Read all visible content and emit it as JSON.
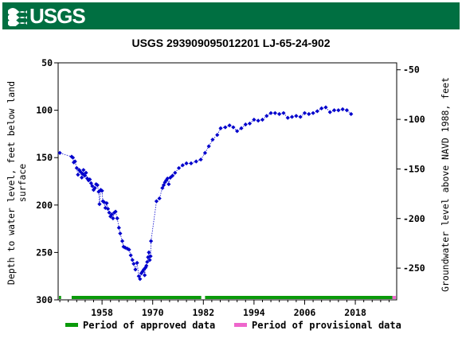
{
  "banner": {
    "logo_text": "USGS"
  },
  "colors": {
    "banner": "#006f41",
    "points": "#0000cc",
    "approved": "#0a9a0a",
    "provisional": "#ee66cc"
  },
  "chart_data": {
    "type": "scatter",
    "title": "USGS 293909095012201 LJ-65-24-902",
    "ylabel_left": [
      "Depth to water level, feet below land",
      "surface"
    ],
    "ylabel_right": "Groundwater level above NAVD 1988, feet",
    "xlabel": "",
    "xlim": [
      1947.6,
      2027.8
    ],
    "ylim_left": [
      300,
      50
    ],
    "ylim_right": [
      -282,
      -43
    ],
    "reversed_left_axis": true,
    "x_ticks": [
      1958,
      1970,
      1982,
      1994,
      2006,
      2018
    ],
    "y_ticks_left": [
      50,
      100,
      150,
      200,
      250,
      300
    ],
    "y_ticks_right": [
      -50,
      -100,
      -150,
      -200,
      -250
    ],
    "grid": false,
    "legend_position": "bottom",
    "legend": [
      {
        "label": "Period of approved data",
        "color": "#0a9a0a"
      },
      {
        "label": "Period of provisional data",
        "color": "#ee66cc"
      }
    ],
    "approved_periods": [
      [
        1947.8,
        1948.3
      ],
      [
        1950.8,
        1981.5
      ],
      [
        1982.4,
        2026.8
      ]
    ],
    "provisional_periods": [
      [
        2026.8,
        2027.6
      ]
    ],
    "series": [
      {
        "values": [
          [
            1948.0,
            145
          ],
          [
            1950.8,
            149
          ],
          [
            1951.1,
            150
          ],
          [
            1951.3,
            155
          ],
          [
            1951.6,
            154
          ],
          [
            1952.0,
            161
          ],
          [
            1952.3,
            168
          ],
          [
            1952.6,
            163
          ],
          [
            1952.9,
            165
          ],
          [
            1953.2,
            171
          ],
          [
            1953.4,
            167
          ],
          [
            1953.6,
            163
          ],
          [
            1953.9,
            169
          ],
          [
            1954.2,
            166
          ],
          [
            1954.5,
            172
          ],
          [
            1954.8,
            174
          ],
          [
            1955.1,
            173
          ],
          [
            1955.4,
            177
          ],
          [
            1955.7,
            180
          ],
          [
            1956.0,
            184
          ],
          [
            1956.3,
            182
          ],
          [
            1956.6,
            178
          ],
          [
            1956.9,
            179
          ],
          [
            1957.2,
            186
          ],
          [
            1957.4,
            199
          ],
          [
            1957.7,
            184
          ],
          [
            1958.0,
            185
          ],
          [
            1958.2,
            196
          ],
          [
            1958.5,
            197
          ],
          [
            1958.8,
            203
          ],
          [
            1959.1,
            198
          ],
          [
            1959.4,
            204
          ],
          [
            1959.7,
            208
          ],
          [
            1960.0,
            212
          ],
          [
            1960.3,
            210
          ],
          [
            1960.6,
            214
          ],
          [
            1960.9,
            208
          ],
          [
            1961.2,
            207
          ],
          [
            1961.6,
            214
          ],
          [
            1962.0,
            224
          ],
          [
            1962.3,
            230
          ],
          [
            1962.8,
            238
          ],
          [
            1963.1,
            244
          ],
          [
            1963.5,
            245
          ],
          [
            1964.0,
            246
          ],
          [
            1964.4,
            247
          ],
          [
            1964.8,
            253
          ],
          [
            1965.2,
            258
          ],
          [
            1965.5,
            262
          ],
          [
            1965.9,
            268
          ],
          [
            1966.3,
            261
          ],
          [
            1966.7,
            275
          ],
          [
            1967.0,
            278
          ],
          [
            1967.3,
            272
          ],
          [
            1967.6,
            270
          ],
          [
            1967.9,
            268
          ],
          [
            1968.1,
            274
          ],
          [
            1968.3,
            266
          ],
          [
            1968.5,
            264
          ],
          [
            1968.7,
            260
          ],
          [
            1968.9,
            255
          ],
          [
            1969.1,
            250
          ],
          [
            1969.3,
            258
          ],
          [
            1969.5,
            254
          ],
          [
            1969.6,
            238
          ],
          [
            1970.9,
            196
          ],
          [
            1971.6,
            193
          ],
          [
            1972.3,
            182
          ],
          [
            1972.6,
            179
          ],
          [
            1972.9,
            176
          ],
          [
            1973.2,
            174
          ],
          [
            1973.5,
            172
          ],
          [
            1973.8,
            178
          ],
          [
            1974.2,
            171
          ],
          [
            1974.7,
            169
          ],
          [
            1975.3,
            166
          ],
          [
            1976.2,
            161
          ],
          [
            1977.1,
            158
          ],
          [
            1978.0,
            156
          ],
          [
            1979.1,
            156
          ],
          [
            1980.3,
            154
          ],
          [
            1981.4,
            152
          ],
          [
            1982.4,
            145
          ],
          [
            1983.3,
            138
          ],
          [
            1984.2,
            131
          ],
          [
            1985.3,
            126
          ],
          [
            1986.1,
            119
          ],
          [
            1987.2,
            118
          ],
          [
            1988.2,
            116
          ],
          [
            1989.1,
            118
          ],
          [
            1990.0,
            122
          ],
          [
            1991.0,
            119
          ],
          [
            1992.0,
            115
          ],
          [
            1993.0,
            114
          ],
          [
            1994.0,
            110
          ],
          [
            1995.0,
            111
          ],
          [
            1996.0,
            110
          ],
          [
            1997.0,
            106
          ],
          [
            1998.0,
            103
          ],
          [
            1999.0,
            103
          ],
          [
            2000.0,
            104
          ],
          [
            2001.0,
            103
          ],
          [
            2002.0,
            108
          ],
          [
            2003.0,
            107
          ],
          [
            2004.0,
            106
          ],
          [
            2005.0,
            107
          ],
          [
            2006.0,
            103
          ],
          [
            2007.0,
            104
          ],
          [
            2008.0,
            103
          ],
          [
            2009.0,
            101
          ],
          [
            2010.0,
            98
          ],
          [
            2011.0,
            97
          ],
          [
            2012.0,
            102
          ],
          [
            2013.0,
            100
          ],
          [
            2014.0,
            100
          ],
          [
            2015.0,
            99
          ],
          [
            2016.0,
            100
          ],
          [
            2017.0,
            104
          ]
        ]
      }
    ]
  }
}
